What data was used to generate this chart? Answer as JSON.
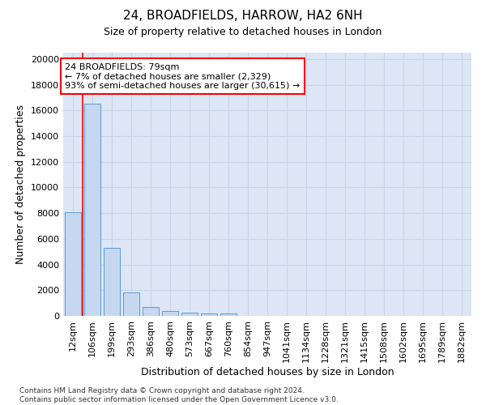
{
  "title_line1": "24, BROADFIELDS, HARROW, HA2 6NH",
  "title_line2": "Size of property relative to detached houses in London",
  "xlabel": "Distribution of detached houses by size in London",
  "ylabel": "Number of detached properties",
  "categories": [
    "12sqm",
    "106sqm",
    "199sqm",
    "293sqm",
    "386sqm",
    "480sqm",
    "573sqm",
    "667sqm",
    "760sqm",
    "854sqm",
    "947sqm",
    "1041sqm",
    "1134sqm",
    "1228sqm",
    "1321sqm",
    "1415sqm",
    "1508sqm",
    "1602sqm",
    "1695sqm",
    "1789sqm",
    "1882sqm"
  ],
  "bar_heights": [
    8100,
    16500,
    5300,
    1850,
    700,
    380,
    280,
    220,
    220,
    0,
    0,
    0,
    0,
    0,
    0,
    0,
    0,
    0,
    0,
    0,
    0
  ],
  "bar_color": "#c5d8f0",
  "bar_edge_color": "#5b9bd5",
  "annotation_box_text": "24 BROADFIELDS: 79sqm\n← 7% of detached houses are smaller (2,329)\n93% of semi-detached houses are larger (30,615) →",
  "annotation_box_color": "white",
  "annotation_box_edge_color": "red",
  "red_line_x": 0.5,
  "ylim": [
    0,
    20500
  ],
  "yticks": [
    0,
    2000,
    4000,
    6000,
    8000,
    10000,
    12000,
    14000,
    16000,
    18000,
    20000
  ],
  "grid_color": "#c8d4e8",
  "bg_color": "#dce6f5",
  "footnote": "Contains HM Land Registry data © Crown copyright and database right 2024.\nContains public sector information licensed under the Open Government Licence v3.0."
}
